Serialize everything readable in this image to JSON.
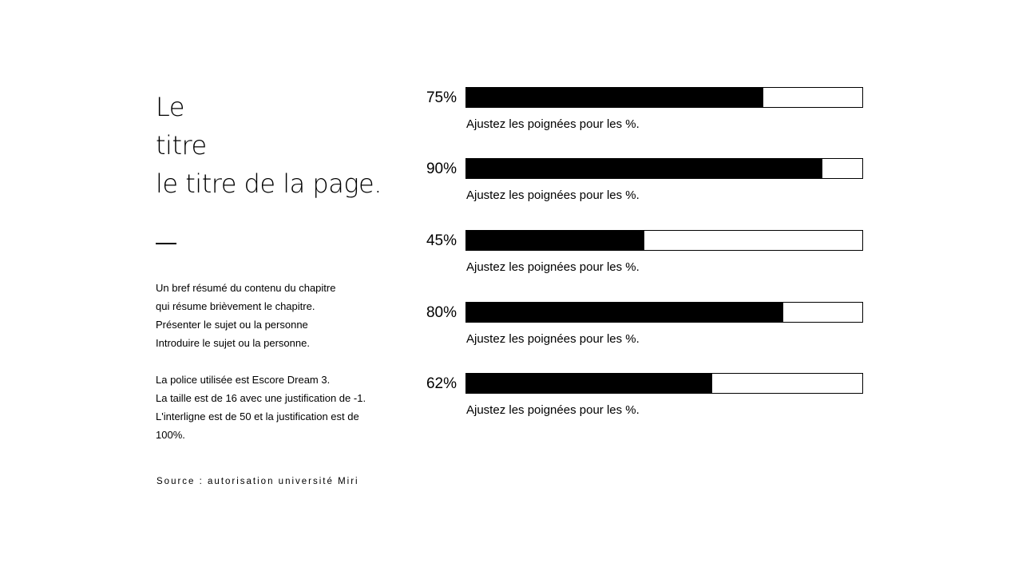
{
  "title_lines": [
    "Le",
    "titre",
    "le titre de la page."
  ],
  "summary_lines": [
    "Un bref résumé du contenu du chapitre",
    "qui résume brièvement le chapitre.",
    "Présenter le sujet ou la personne",
    "Introduire le sujet ou la personne.",
    "",
    "La police utilisée est Escore Dream 3.",
    "La taille est de 16 avec une justification de -1.",
    "L'interligne est de 50 et la justification est de",
    "100%."
  ],
  "source": "Source : autorisation université Miri",
  "chart_data": {
    "type": "bar",
    "orientation": "horizontal",
    "ylim": [
      0,
      100
    ],
    "bars": [
      {
        "label": "75%",
        "value": 75,
        "caption": "Ajustez les poignées pour les %."
      },
      {
        "label": "90%",
        "value": 90,
        "caption": "Ajustez les poignées pour les %."
      },
      {
        "label": "45%",
        "value": 45,
        "caption": "Ajustez les poignées pour les %."
      },
      {
        "label": "80%",
        "value": 80,
        "caption": "Ajustez les poignées pour les %."
      },
      {
        "label": "62%",
        "value": 62,
        "caption": "Ajustez les poignées pour les %."
      }
    ],
    "colors": {
      "fill": "#000000",
      "track": "#ffffff"
    }
  }
}
